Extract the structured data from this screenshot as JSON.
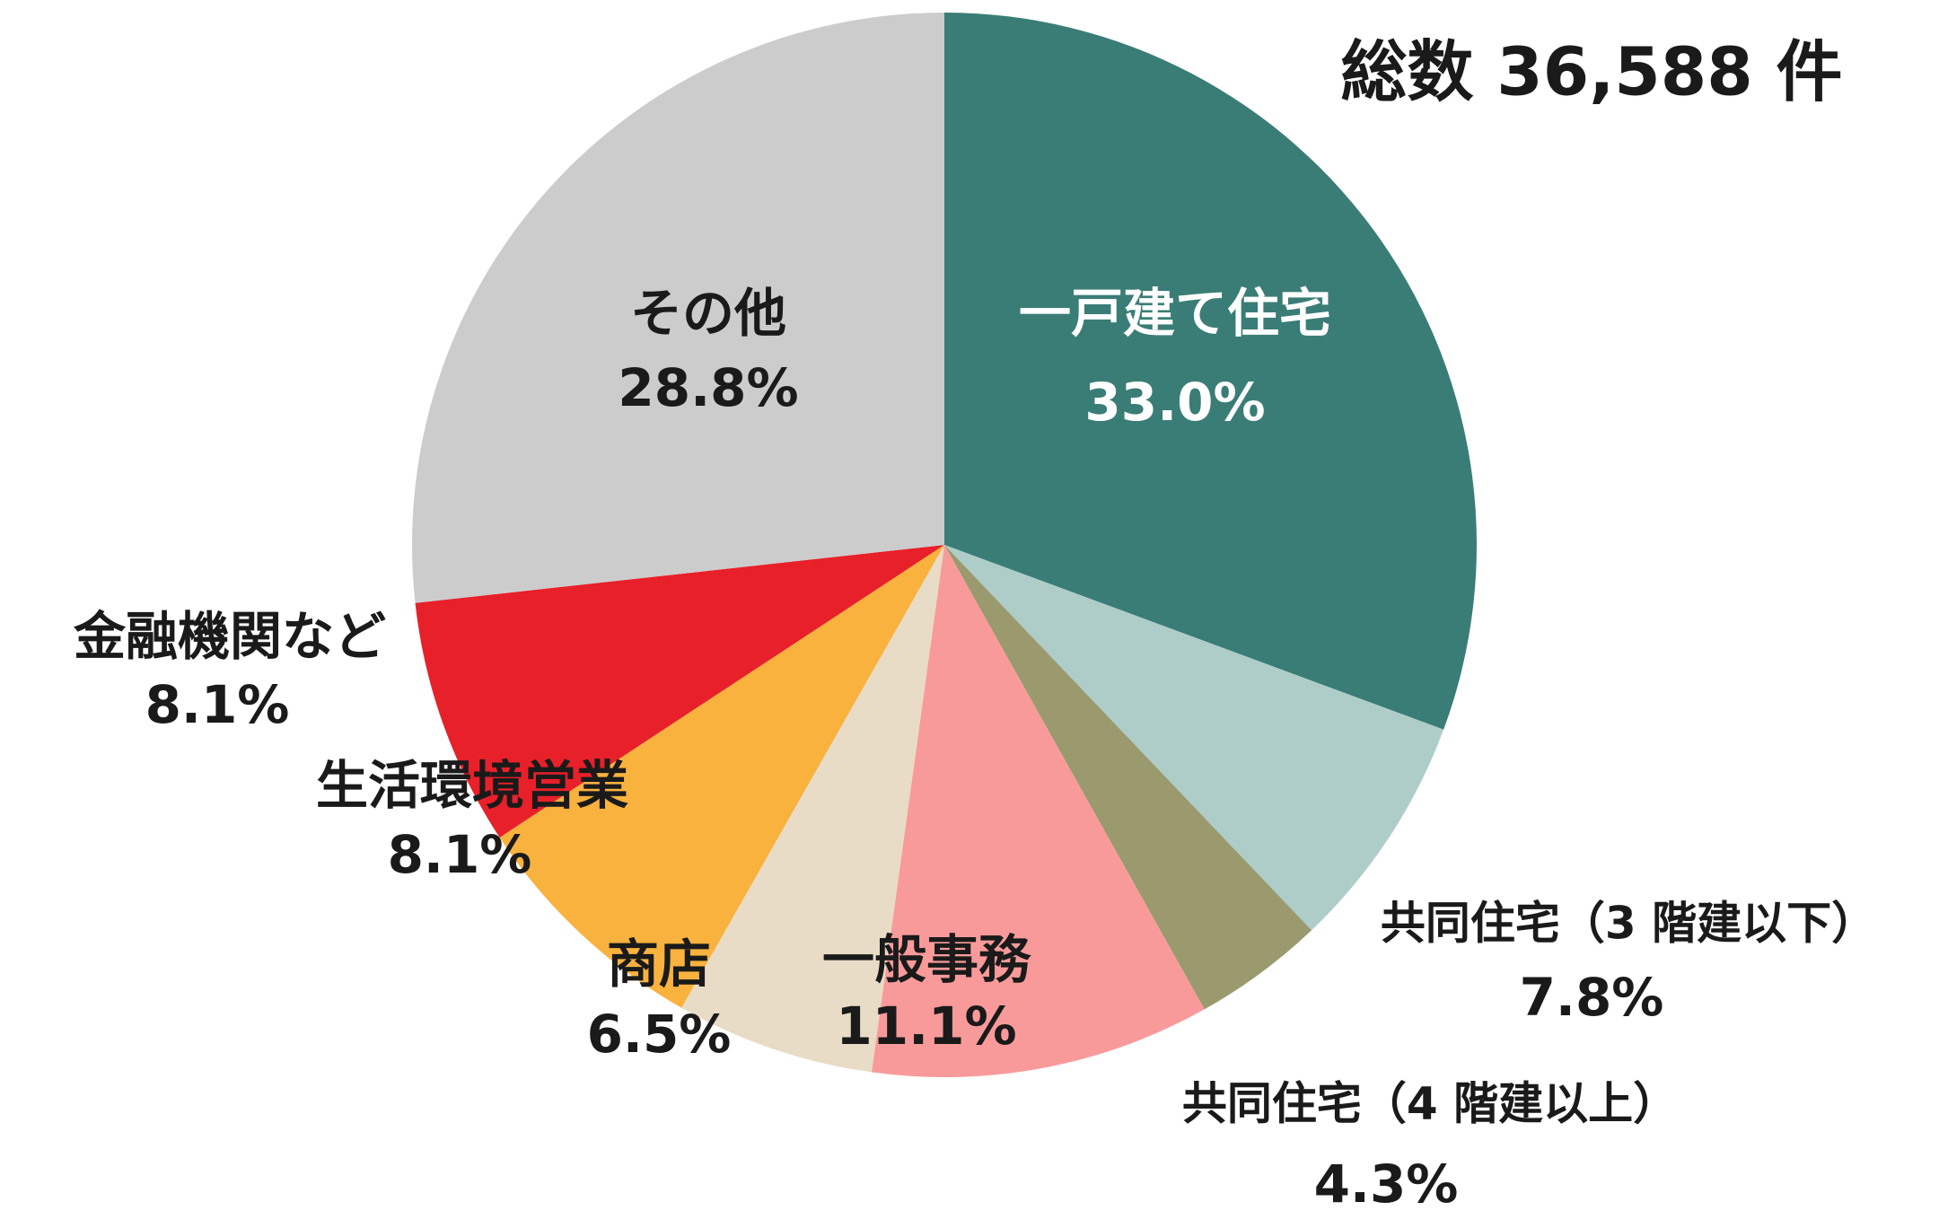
{
  "chart_data": {
    "type": "pie",
    "title": "総数 36,588 件",
    "categories": [
      "一戸建て住宅",
      "共同住宅（3 階建以下）",
      "共同住宅（4 階建以上）",
      "一般事務",
      "商店",
      "生活環境営業",
      "金融機関など",
      "その他"
    ],
    "values": [
      33.0,
      7.8,
      4.3,
      11.1,
      6.5,
      8.1,
      8.1,
      28.8
    ],
    "value_labels": [
      "33.0%",
      "7.8%",
      "4.3%",
      "11.1%",
      "6.5%",
      "8.1%",
      "8.1%",
      "28.8%"
    ],
    "colors": [
      "#3a7d76",
      "#aecdc9",
      "#9a9a6e",
      "#f99a9a",
      "#e8dcc6",
      "#f9b23e",
      "#e8202a",
      "#cccccc"
    ]
  }
}
